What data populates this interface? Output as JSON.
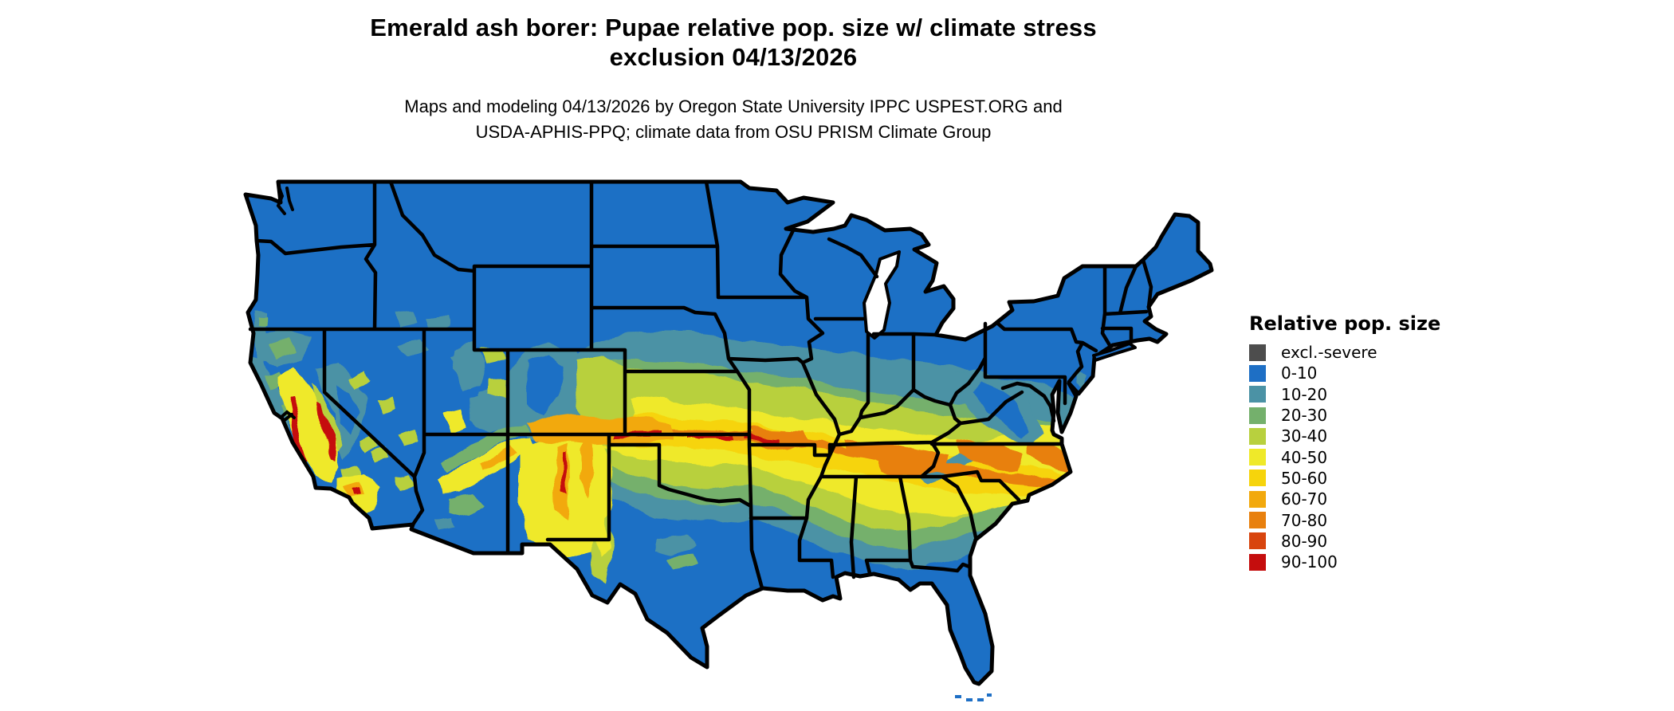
{
  "header": {
    "title_line1": "Emerald ash borer: Pupae relative pop. size w/ climate stress",
    "title_line2": "exclusion 04/13/2026",
    "subtitle_line1": "Maps and modeling 04/13/2026 by Oregon State University IPPC USPEST.ORG and",
    "subtitle_line2": "USDA-APHIS-PPQ; climate data from OSU PRISM Climate Group"
  },
  "legend": {
    "title": "Relative pop. size",
    "items": [
      {
        "label": "excl.-severe",
        "color": "#4d4d4d"
      },
      {
        "label": "0-10",
        "color": "#1e6fc5"
      },
      {
        "label": "10-20",
        "color": "#4b92a5"
      },
      {
        "label": "20-30",
        "color": "#74b06c"
      },
      {
        "label": "30-40",
        "color": "#b8d03e"
      },
      {
        "label": "40-50",
        "color": "#efe929"
      },
      {
        "label": "50-60",
        "color": "#f6d40c"
      },
      {
        "label": "60-70",
        "color": "#f2a90d"
      },
      {
        "label": "70-80",
        "color": "#e8800e"
      },
      {
        "label": "80-90",
        "color": "#d8450e"
      },
      {
        "label": "90-100",
        "color": "#c50d0d"
      }
    ]
  },
  "map": {
    "area_shown": "Conterminous United States with state boundaries",
    "style": "raster choropleth of relative population size"
  }
}
